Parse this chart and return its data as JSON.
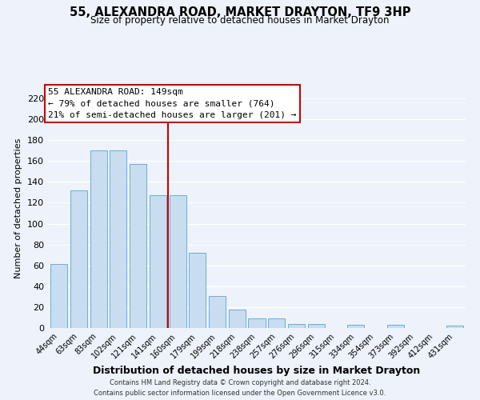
{
  "title": "55, ALEXANDRA ROAD, MARKET DRAYTON, TF9 3HP",
  "subtitle": "Size of property relative to detached houses in Market Drayton",
  "xlabel": "Distribution of detached houses by size in Market Drayton",
  "ylabel": "Number of detached properties",
  "bar_labels": [
    "44sqm",
    "63sqm",
    "83sqm",
    "102sqm",
    "121sqm",
    "141sqm",
    "160sqm",
    "179sqm",
    "199sqm",
    "218sqm",
    "238sqm",
    "257sqm",
    "276sqm",
    "296sqm",
    "315sqm",
    "334sqm",
    "354sqm",
    "373sqm",
    "392sqm",
    "412sqm",
    "431sqm"
  ],
  "bar_values": [
    61,
    132,
    170,
    170,
    157,
    127,
    127,
    72,
    31,
    18,
    9,
    9,
    4,
    4,
    0,
    3,
    0,
    3,
    0,
    0,
    2
  ],
  "bar_color": "#c8ddf0",
  "bar_edge_color": "#6baed6",
  "vline_x": 5.5,
  "vline_color": "#cc0000",
  "ylim": [
    0,
    230
  ],
  "yticks": [
    0,
    20,
    40,
    60,
    80,
    100,
    120,
    140,
    160,
    180,
    200,
    220
  ],
  "annotation_title": "55 ALEXANDRA ROAD: 149sqm",
  "annotation_line1": "← 79% of detached houses are smaller (764)",
  "annotation_line2": "21% of semi-detached houses are larger (201) →",
  "annotation_box_color": "#ffffff",
  "annotation_box_edge": "#cc0000",
  "footnote1": "Contains HM Land Registry data © Crown copyright and database right 2024.",
  "footnote2": "Contains public sector information licensed under the Open Government Licence v3.0.",
  "background_color": "#edf2fb",
  "grid_color": "#ffffff"
}
